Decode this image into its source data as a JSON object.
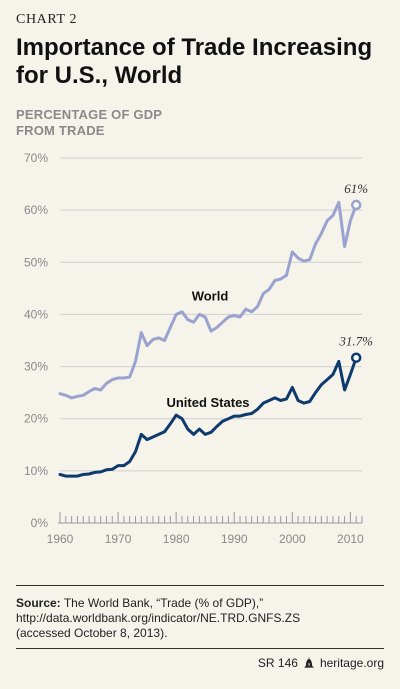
{
  "header": {
    "chart_label": "CHART 2",
    "title_line1": "Importance of Trade Increasing",
    "title_line2": "for U.S., World"
  },
  "axis": {
    "ylabel_line1": "PERCENTAGE OF GDP",
    "ylabel_line2": "FROM TRADE"
  },
  "source": {
    "label": "Source:",
    "text_line1": "The World Bank, “Trade (% of GDP),”",
    "text_line2": "http://data.worldbank.org/indicator/NE.TRD.GNFS.ZS",
    "text_line3": "(accessed October 8, 2013)."
  },
  "footer": {
    "report_id": "SR 146",
    "site": "heritage.org"
  },
  "colors": {
    "world": "#9aa3cf",
    "us": "#0e3a6e",
    "grid": "#cfcfcf",
    "axis_text": "#8a8a8a"
  },
  "chart_data": {
    "type": "line",
    "title": "Importance of Trade Increasing for U.S., World",
    "ylabel": "PERCENTAGE OF GDP FROM TRADE",
    "xlabel": "",
    "xlim": [
      1960,
      2012
    ],
    "ylim": [
      0,
      70
    ],
    "x_ticks": [
      1960,
      1970,
      1980,
      1990,
      2000,
      2010
    ],
    "y_ticks": [
      0,
      10,
      20,
      30,
      40,
      50,
      60,
      70
    ],
    "y_tick_labels": [
      "0%",
      "10%",
      "20%",
      "30%",
      "40%",
      "50%",
      "60%",
      "70%"
    ],
    "grid": true,
    "x": [
      1960,
      1961,
      1962,
      1963,
      1964,
      1965,
      1966,
      1967,
      1968,
      1969,
      1970,
      1971,
      1972,
      1973,
      1974,
      1975,
      1976,
      1977,
      1978,
      1979,
      1980,
      1981,
      1982,
      1983,
      1984,
      1985,
      1986,
      1987,
      1988,
      1989,
      1990,
      1991,
      1992,
      1993,
      1994,
      1995,
      1996,
      1997,
      1998,
      1999,
      2000,
      2001,
      2002,
      2003,
      2004,
      2005,
      2006,
      2007,
      2008,
      2009,
      2010,
      2011
    ],
    "series": [
      {
        "name": "World",
        "end_label": "61%",
        "values": [
          24.8,
          24.5,
          24.0,
          24.3,
          24.5,
          25.2,
          25.8,
          25.5,
          26.8,
          27.5,
          27.8,
          27.8,
          28.0,
          31.0,
          36.5,
          34.0,
          35.2,
          35.5,
          35.0,
          37.5,
          40.0,
          40.5,
          39.0,
          38.5,
          40.0,
          39.5,
          36.8,
          37.5,
          38.5,
          39.5,
          39.8,
          39.5,
          41.0,
          40.5,
          41.5,
          44.0,
          44.8,
          46.5,
          46.8,
          47.5,
          52.0,
          50.8,
          50.2,
          50.5,
          53.5,
          55.5,
          58.0,
          59.0,
          61.5,
          53.0,
          58.0,
          61.0
        ]
      },
      {
        "name": "United States",
        "end_label": "31.7%",
        "values": [
          9.3,
          9.0,
          9.0,
          9.0,
          9.3,
          9.4,
          9.7,
          9.8,
          10.2,
          10.3,
          11.0,
          11.0,
          11.8,
          13.7,
          17.0,
          16.0,
          16.5,
          17.0,
          17.5,
          19.0,
          20.7,
          20.0,
          18.0,
          17.0,
          18.0,
          17.0,
          17.4,
          18.5,
          19.5,
          20.0,
          20.5,
          20.5,
          20.8,
          21.0,
          21.8,
          23.0,
          23.5,
          24.0,
          23.5,
          23.8,
          26.0,
          23.5,
          23.0,
          23.3,
          25.0,
          26.5,
          27.5,
          28.5,
          31.0,
          25.5,
          28.5,
          31.7
        ]
      }
    ]
  }
}
